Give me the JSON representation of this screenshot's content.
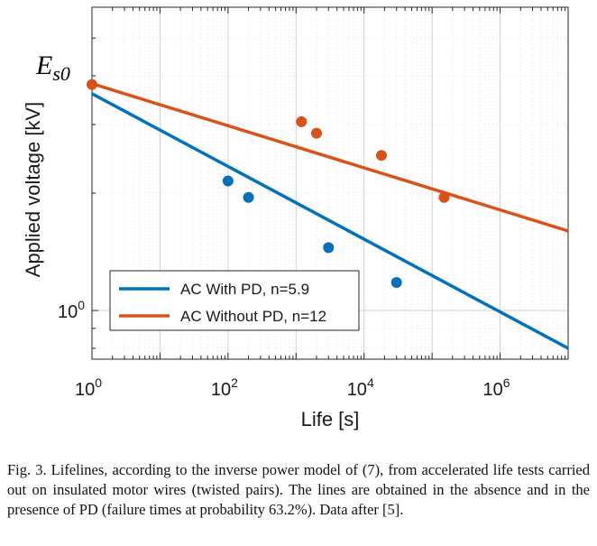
{
  "chart_data": {
    "type": "line",
    "xlabel": "Life [s]",
    "ylabel": "Applied voltage [kV]",
    "x_scale": "log",
    "y_scale": "log",
    "xlim": [
      1,
      10000000
    ],
    "ylim": [
      0.75,
      6
    ],
    "x_ticks": [
      {
        "value": 1,
        "base": "10",
        "exp": "0"
      },
      {
        "value": 100,
        "base": "10",
        "exp": "2"
      },
      {
        "value": 10000,
        "base": "10",
        "exp": "4"
      },
      {
        "value": 1000000,
        "base": "10",
        "exp": "6"
      }
    ],
    "y_ticks": [
      {
        "value": 1,
        "base": "10",
        "exp": "0"
      }
    ],
    "grid": true,
    "legend_position": "bottom-left",
    "annotation": {
      "main": "E",
      "sub": "s0"
    },
    "series": [
      {
        "name": "AC With PD, n=5.9",
        "color": "#0072BD",
        "line": [
          [
            1,
            3.6
          ],
          [
            10000000,
            0.8
          ]
        ],
        "points": [
          [
            100,
            2.15
          ],
          [
            200,
            1.95
          ],
          [
            3000,
            1.45
          ],
          [
            30000,
            1.18
          ]
        ]
      },
      {
        "name": "AC Without PD, n=12",
        "color": "#D95319",
        "line": [
          [
            1,
            3.82
          ],
          [
            10000000,
            1.6
          ]
        ],
        "points": [
          [
            1,
            3.8
          ],
          [
            1200,
            3.05
          ],
          [
            2000,
            2.85
          ],
          [
            18000,
            2.5
          ],
          [
            150000,
            1.95
          ]
        ]
      }
    ]
  },
  "caption": {
    "text": "Fig. 3.    Lifelines, according to the inverse power model of (7), from accelerated life tests carried out on insulated motor wires (twisted pairs). The lines are obtained in the absence and in the presence of PD (failure times at probability 63.2%). Data after [5]."
  }
}
